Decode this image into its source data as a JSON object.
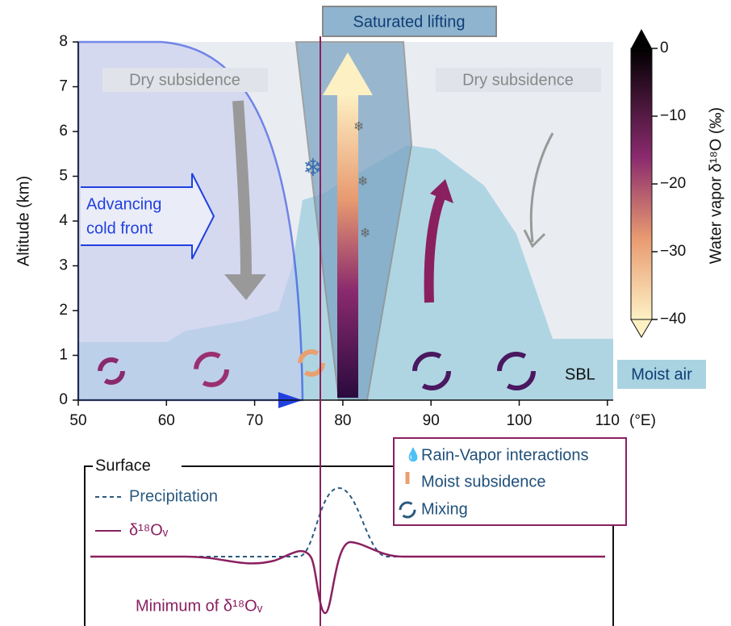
{
  "title": "Saturated lifting",
  "y_axis": {
    "label": "Altitude (km)",
    "ticks": [
      "0",
      "1",
      "2",
      "3",
      "4",
      "5",
      "6",
      "7",
      "8"
    ]
  },
  "x_axis": {
    "ticks": [
      "50",
      "60",
      "70",
      "80",
      "90",
      "100",
      "110"
    ],
    "unit": "(°E)"
  },
  "colorbar": {
    "label": "Water vapor δ¹⁸O (‰)",
    "ticks": [
      "0",
      "−10",
      "−20",
      "−30",
      "−40"
    ]
  },
  "labels": {
    "dry_subsidence_left": "Dry subsidence",
    "dry_subsidence_right": "Dry subsidence",
    "cold_front": [
      "Advancing",
      "cold front"
    ],
    "sbl": "SBL",
    "moist_air": "Moist air"
  },
  "process_legend": [
    "Rain-Vapor interactions",
    "Moist subsidence",
    "Mixing"
  ],
  "surface": {
    "title": "Surface",
    "legend": [
      "Precipitation",
      "δ¹⁸Oᵥ"
    ],
    "annotation": "Minimum of δ¹⁸Oᵥ"
  }
}
